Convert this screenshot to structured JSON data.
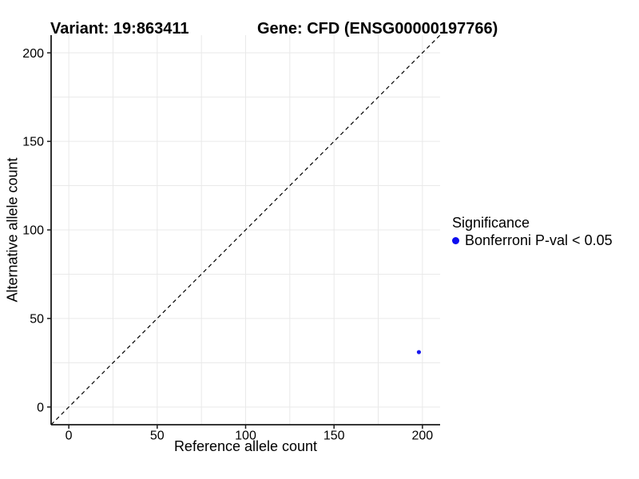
{
  "figure": {
    "background": "#ffffff",
    "titles": {
      "variant": "Variant: 19:863411",
      "gene": "Gene: CFD (ENSG00000197766)"
    }
  },
  "chart_data": {
    "type": "scatter",
    "title": "Variant: 19:863411  /  Gene: CFD (ENSG00000197766)",
    "xlabel": "Reference allele count",
    "ylabel": "Alternative allele count",
    "xlim": [
      -10,
      210
    ],
    "ylim": [
      -10,
      210
    ],
    "xticks": [
      0,
      50,
      100,
      150,
      200
    ],
    "yticks": [
      0,
      50,
      100,
      150,
      200
    ],
    "grid": true,
    "grid_step": 25,
    "grid_color": "#E9E9E9",
    "axis_color": "#1a1a1a",
    "tick_label_color": "#000000",
    "reference_line": {
      "style": "dashed",
      "from": [
        -10,
        -10
      ],
      "to": [
        210,
        210
      ],
      "color": "#000000",
      "dash": "5 4"
    },
    "series": [
      {
        "name": "Bonferroni P-val < 0.05",
        "color": "#1818EF",
        "point_radius": 2.6,
        "points": [
          {
            "x": 198,
            "y": 31
          }
        ]
      }
    ],
    "legend": {
      "position": "right",
      "title": "Significance",
      "items": [
        {
          "label": "Bonferroni P-val < 0.05",
          "color": "#0D0DEF",
          "marker": "circle"
        }
      ]
    }
  }
}
